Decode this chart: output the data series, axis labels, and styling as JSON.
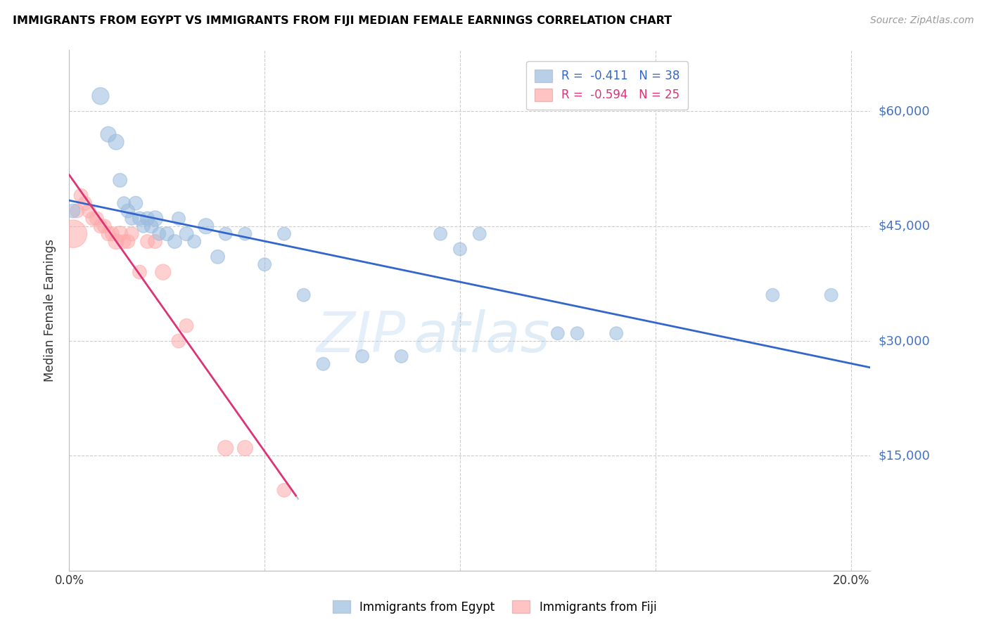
{
  "title": "IMMIGRANTS FROM EGYPT VS IMMIGRANTS FROM FIJI MEDIAN FEMALE EARNINGS CORRELATION CHART",
  "source": "Source: ZipAtlas.com",
  "ylabel": "Median Female Earnings",
  "xlim": [
    0.0,
    0.205
  ],
  "ylim": [
    0,
    68000
  ],
  "yticks": [
    0,
    15000,
    30000,
    45000,
    60000
  ],
  "ytick_labels": [
    "",
    "$15,000",
    "$30,000",
    "$45,000",
    "$60,000"
  ],
  "xticks": [
    0.0,
    0.05,
    0.1,
    0.15,
    0.2
  ],
  "xtick_labels": [
    "0.0%",
    "",
    "",
    "",
    "20.0%"
  ],
  "legend_egypt": "R =  -0.411   N = 38",
  "legend_fiji": "R =  -0.594   N = 25",
  "color_egypt": "#99BBDD",
  "color_fiji": "#FFAAAA",
  "color_egypt_line": "#3366CC",
  "color_fiji_line": "#DD3377",
  "watermark_zip": "ZIP",
  "watermark_atlas": "atlas",
  "egypt_x": [
    0.001,
    0.008,
    0.01,
    0.012,
    0.013,
    0.014,
    0.015,
    0.016,
    0.017,
    0.018,
    0.019,
    0.02,
    0.021,
    0.022,
    0.023,
    0.025,
    0.027,
    0.028,
    0.03,
    0.032,
    0.035,
    0.038,
    0.04,
    0.045,
    0.05,
    0.055,
    0.06,
    0.065,
    0.075,
    0.085,
    0.095,
    0.1,
    0.105,
    0.125,
    0.13,
    0.14,
    0.18,
    0.195
  ],
  "egypt_y": [
    47000,
    62000,
    57000,
    56000,
    51000,
    48000,
    47000,
    46000,
    48000,
    46000,
    45000,
    46000,
    45000,
    46000,
    44000,
    44000,
    43000,
    46000,
    44000,
    43000,
    45000,
    41000,
    44000,
    44000,
    40000,
    44000,
    36000,
    27000,
    28000,
    28000,
    44000,
    42000,
    44000,
    31000,
    31000,
    31000,
    36000,
    36000
  ],
  "egypt_size": [
    200,
    300,
    250,
    250,
    200,
    180,
    200,
    180,
    200,
    200,
    180,
    200,
    200,
    250,
    180,
    200,
    200,
    180,
    200,
    180,
    250,
    200,
    180,
    180,
    180,
    180,
    180,
    180,
    180,
    180,
    180,
    180,
    180,
    180,
    180,
    180,
    180,
    180
  ],
  "fiji_x": [
    0.001,
    0.002,
    0.003,
    0.004,
    0.005,
    0.006,
    0.007,
    0.008,
    0.009,
    0.01,
    0.011,
    0.012,
    0.013,
    0.014,
    0.015,
    0.016,
    0.018,
    0.02,
    0.022,
    0.024,
    0.028,
    0.03,
    0.04,
    0.045,
    0.055
  ],
  "fiji_y": [
    44000,
    47000,
    49000,
    48000,
    47000,
    46000,
    46000,
    45000,
    45000,
    44000,
    44000,
    43000,
    44000,
    43000,
    43000,
    44000,
    39000,
    43000,
    43000,
    39000,
    30000,
    32000,
    16000,
    16000,
    10500
  ],
  "fiji_size": [
    800,
    200,
    200,
    200,
    200,
    200,
    200,
    200,
    200,
    200,
    200,
    250,
    250,
    200,
    200,
    200,
    200,
    200,
    200,
    250,
    200,
    200,
    250,
    250,
    200
  ]
}
